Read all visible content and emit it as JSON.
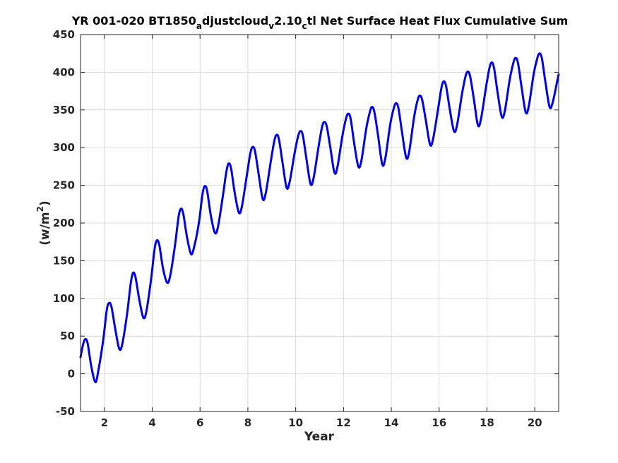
{
  "chart_data": {
    "type": "line",
    "title": "YR 001-020 BT1850_adjustcloud_v2.10_ctl Net Surface Heat Flux  Cumulative Sum",
    "title_parts": {
      "a": "YR 001-020 BT1850",
      "b": "a",
      "c": "djustcloud",
      "d": "v",
      "e": "2.10",
      "f": "c",
      "g": "tl Net Surface Heat Flux  Cumulative Sum"
    },
    "xlabel": "Year",
    "ylabel": "(w/m^2)",
    "ylabel_parts": {
      "base": "(w/m",
      "sup": "2",
      "close": ")"
    },
    "xlim": [
      1,
      21
    ],
    "ylim": [
      -50,
      450
    ],
    "xticks": [
      2,
      4,
      6,
      8,
      10,
      12,
      14,
      16,
      18,
      20
    ],
    "yticks": [
      -50,
      0,
      50,
      100,
      150,
      200,
      250,
      300,
      350,
      400,
      450
    ],
    "grid": true,
    "line_color": "#0000e6",
    "series": [
      {
        "x": [
          1.0,
          1.1,
          1.2,
          1.3,
          1.45,
          1.62,
          1.75,
          1.95,
          2.1,
          2.2,
          2.3,
          2.45,
          2.62,
          2.75,
          2.95,
          3.1,
          3.2,
          3.3,
          3.45,
          3.62,
          3.75,
          3.95,
          4.1,
          4.2,
          4.3,
          4.45,
          4.62,
          4.75,
          4.95,
          5.1,
          5.2,
          5.3,
          5.45,
          5.62,
          5.75,
          5.95,
          6.1,
          6.2,
          6.3,
          6.45,
          6.62,
          6.75,
          6.95,
          7.1,
          7.2,
          7.3,
          7.45,
          7.62,
          7.75,
          7.95,
          8.1,
          8.2,
          8.3,
          8.45,
          8.62,
          8.75,
          8.95,
          9.1,
          9.2,
          9.3,
          9.45,
          9.62,
          9.75,
          9.95,
          10.1,
          10.2,
          10.3,
          10.45,
          10.62,
          10.75,
          10.95,
          11.1,
          11.2,
          11.3,
          11.45,
          11.62,
          11.75,
          11.95,
          12.1,
          12.2,
          12.3,
          12.45,
          12.62,
          12.75,
          12.95,
          13.1,
          13.2,
          13.3,
          13.45,
          13.62,
          13.75,
          13.95,
          14.1,
          14.2,
          14.3,
          14.45,
          14.62,
          14.75,
          14.95,
          15.1,
          15.2,
          15.3,
          15.45,
          15.62,
          15.75,
          15.95,
          16.1,
          16.2,
          16.3,
          16.45,
          16.62,
          16.75,
          16.95,
          17.1,
          17.2,
          17.3,
          17.45,
          17.62,
          17.75,
          17.95,
          18.1,
          18.2,
          18.3,
          18.45,
          18.62,
          18.75,
          18.95,
          19.1,
          19.2,
          19.3,
          19.45,
          19.62,
          19.75,
          19.95,
          20.1,
          20.2,
          20.3,
          20.45,
          20.62,
          20.75,
          20.95,
          21.0
        ],
        "y": [
          22,
          38,
          46,
          40,
          10,
          -11,
          5,
          45,
          85,
          94,
          88,
          60,
          33,
          40,
          80,
          120,
          134,
          128,
          100,
          75,
          82,
          125,
          166,
          177,
          170,
          140,
          121,
          130,
          170,
          208,
          219,
          212,
          182,
          159,
          168,
          200,
          238,
          249,
          242,
          210,
          187,
          195,
          235,
          268,
          279,
          272,
          240,
          214,
          222,
          262,
          292,
          301,
          295,
          265,
          232,
          240,
          280,
          308,
          317,
          311,
          280,
          247,
          255,
          292,
          315,
          322,
          316,
          285,
          252,
          260,
          300,
          327,
          334,
          328,
          300,
          267,
          275,
          315,
          338,
          345,
          338,
          305,
          275,
          283,
          325,
          347,
          354,
          346,
          315,
          278,
          286,
          330,
          352,
          359,
          352,
          320,
          287,
          295,
          340,
          363,
          369,
          362,
          335,
          304,
          312,
          350,
          380,
          388,
          380,
          350,
          322,
          330,
          370,
          394,
          401,
          394,
          365,
          330,
          338,
          378,
          405,
          413,
          405,
          372,
          341,
          349,
          390,
          412,
          419,
          412,
          380,
          347,
          355,
          397,
          418,
          425,
          418,
          386,
          354,
          360,
          390,
          397
        ]
      }
    ]
  }
}
